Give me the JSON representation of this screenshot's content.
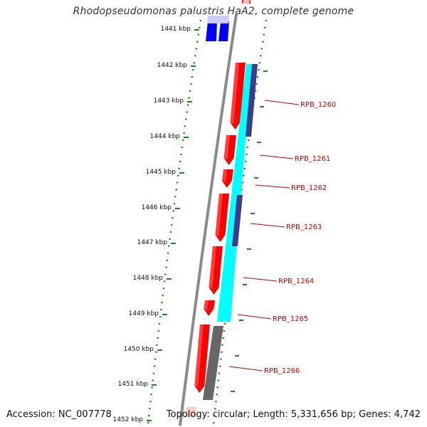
{
  "title": "Rhodopseudomonas palustris HaA2, complete genome",
  "footer": {
    "accession": "Accession: NC_007778",
    "summary": "Topology: circular; Length: 5,331,656 bp; Genes: 4,742"
  },
  "colors": {
    "backbone": "#8a8a8a",
    "ticks": "#1a8a1a",
    "forward_cds": "#ff0000",
    "reverse_cds": "#0000ff",
    "feature_cyan": "#00ffff",
    "feature_navy": "#3c3c8c",
    "feature_gray": "#666666",
    "labels": "#cc0000"
  },
  "scale": {
    "unit": "kbp",
    "tick_labels": [
      "1441 kbp",
      "1442 kbp",
      "1443 kbp",
      "1444 kbp",
      "1445 kbp",
      "1446 kbp",
      "1447 kbp",
      "1448 kbp",
      "1449 kbp",
      "1450 kbp",
      "1451 kbp",
      "1452 kbp"
    ]
  },
  "gene_labels": [
    "RPB_1260",
    "RPB_1261",
    "RPB_1262",
    "RPB_1263",
    "RPB_1264",
    "RPB_1265",
    "RPB_1266"
  ]
}
